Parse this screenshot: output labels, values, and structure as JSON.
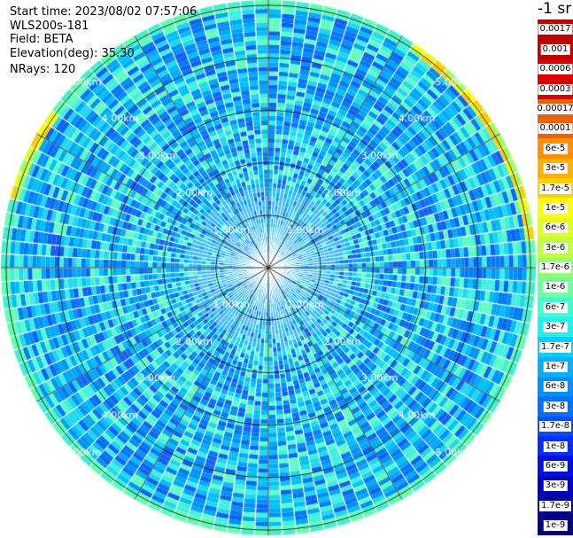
{
  "info": {
    "start_time": "Start time: 2023/08/02 07:57:06",
    "instrument": "WLS200s-181",
    "field": "Field: BETA",
    "elevation": "Elevation(deg): 35.30",
    "nrays": "NRays: 120"
  },
  "colorbar": {
    "unit": "-1 sr",
    "labels": [
      "0.0017",
      "0.001",
      "0.0006",
      "0.0003",
      "0.00017",
      "0.0001",
      "6e-5",
      "3e-5",
      "1.7e-5",
      "1e-5",
      "6e-6",
      "3e-6",
      "1.7e-6",
      "1e-6",
      "6e-7",
      "3e-7",
      "1.7e-7",
      "1e-7",
      "6e-8",
      "3e-8",
      "1.7e-8",
      "1e-8",
      "6e-9",
      "3e-9",
      "1.7e-9",
      "1e-9"
    ],
    "colors": [
      "#c00000",
      "#c00000",
      "#e00000",
      "#e00000",
      "#f06000",
      "#f06000",
      "#ff9000",
      "#ffb000",
      "#ffd000",
      "#ffff00",
      "#e0ff20",
      "#c0ff40",
      "#90ff70",
      "#70ffa0",
      "#40ffd0",
      "#20f0f0",
      "#00d0ff",
      "#00b0ff",
      "#0090ff",
      "#0070ff",
      "#0050ff",
      "#0030ff",
      "#0010e0",
      "#0000c0",
      "#0000a0",
      "#000080"
    ]
  },
  "chart_data": {
    "type": "heatmap",
    "projection": "polar",
    "field": "BETA",
    "nrays": 120,
    "range_rings_km": [
      1.0,
      2.0,
      3.0,
      4.0,
      5.0
    ],
    "range_labels": [
      "1.00km",
      "2.00km",
      "3.00km",
      "4.00km",
      "5.00km"
    ],
    "max_range_km": 5.1,
    "spokes_deg": [
      0,
      30,
      60,
      90,
      120,
      150,
      180,
      210,
      240,
      270,
      300,
      330
    ],
    "color_scale": "log",
    "value_range": [
      1e-09,
      0.0017
    ],
    "typical_value": 3e-08,
    "outer_ring_value": 1.7e-06
  }
}
